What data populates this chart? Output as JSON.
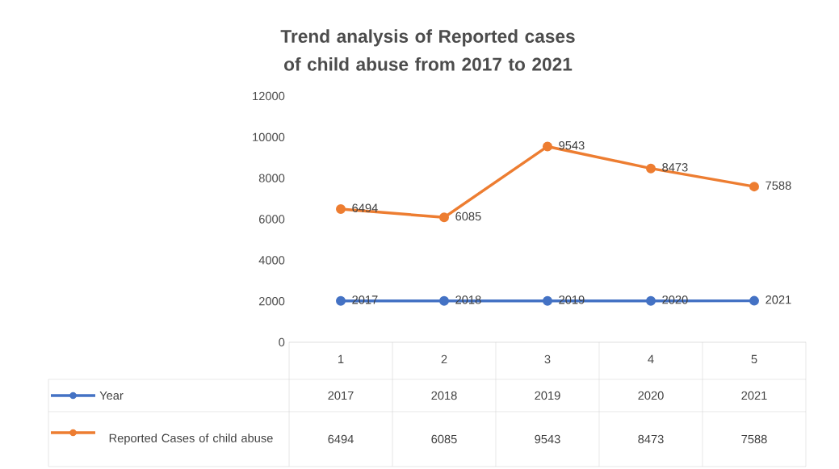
{
  "chart_data": {
    "type": "line",
    "title": "Trend analysis of Reported cases of child abuse from 2017 to 2021",
    "categories": [
      "1",
      "2",
      "3",
      "4",
      "5"
    ],
    "series": [
      {
        "name": "Year",
        "color": "#4472c4",
        "values": [
          2017,
          2018,
          2019,
          2020,
          2021
        ],
        "value_labels": [
          "2017",
          "2018",
          "2019",
          "2020",
          "2021"
        ]
      },
      {
        "name": "Reported Cases of child abuse",
        "color": "#ed7d31",
        "values": [
          6494,
          6085,
          9543,
          8473,
          7588
        ],
        "value_labels": [
          "6494",
          "6085",
          "9543",
          "8473",
          "7588"
        ]
      }
    ],
    "ylim": [
      0,
      12000
    ],
    "yticks": [
      0,
      2000,
      4000,
      6000,
      8000,
      10000,
      12000
    ],
    "annotations": [
      "2017",
      "2018",
      "2019",
      "2020",
      "2021",
      "6494",
      "6085",
      "9543",
      "8473",
      "7588"
    ],
    "marker": "circle",
    "line_style": "solid",
    "legend": "bottom",
    "grid": false
  }
}
